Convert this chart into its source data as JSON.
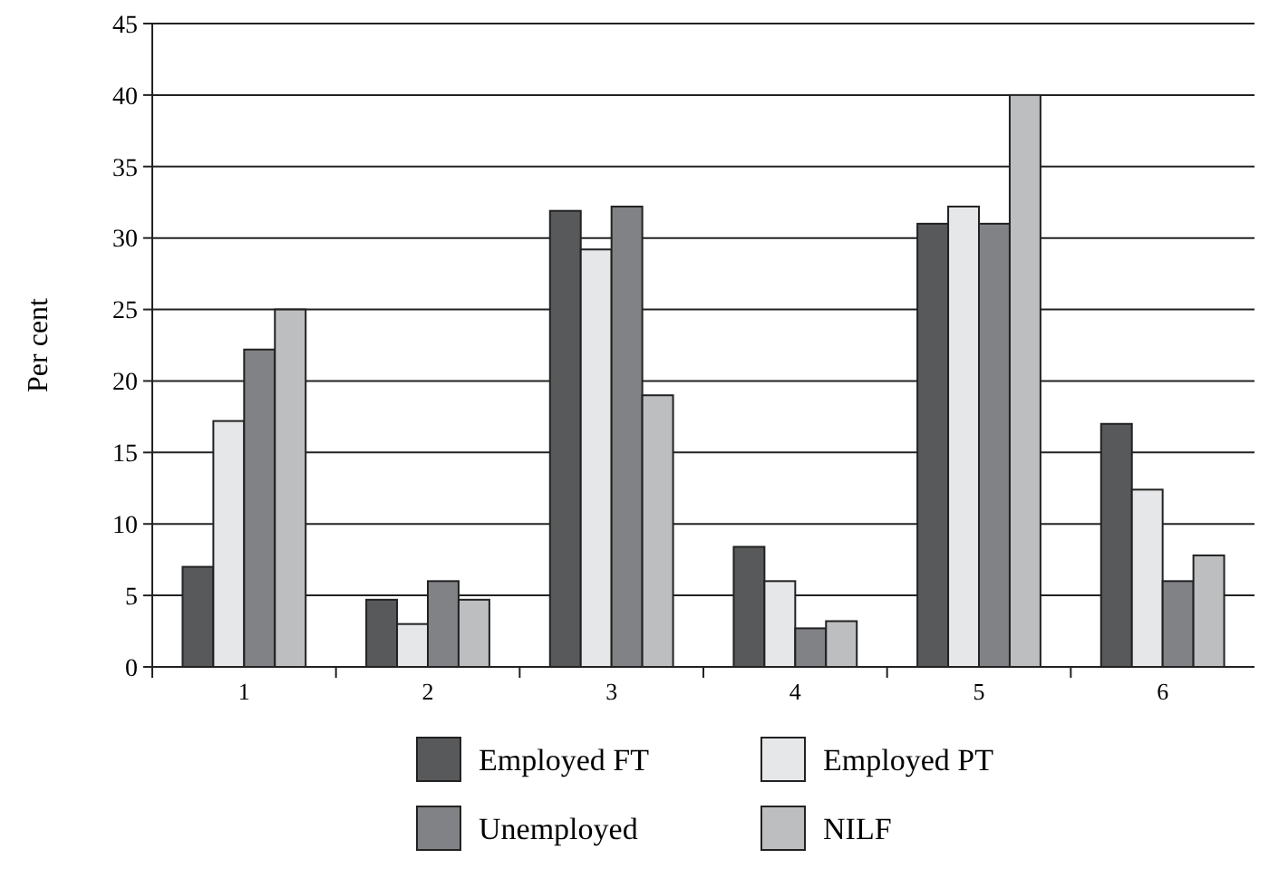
{
  "chart_data": {
    "type": "bar",
    "ylabel": "Per cent",
    "categories": [
      "1",
      "2",
      "3",
      "4",
      "5",
      "6"
    ],
    "series": [
      {
        "name": "Employed FT",
        "color": "#58595b",
        "values": [
          7,
          4.7,
          31.9,
          8.4,
          31,
          17
        ]
      },
      {
        "name": "Employed PT",
        "color": "#e6e7e8",
        "values": [
          17.2,
          3,
          29.2,
          6,
          32.2,
          12.4
        ]
      },
      {
        "name": "Unemployed",
        "color": "#808285",
        "values": [
          22.2,
          6,
          32.2,
          2.7,
          31,
          6
        ]
      },
      {
        "name": "NILF",
        "color": "#bcbec0",
        "values": [
          25,
          4.7,
          19,
          3.2,
          40,
          7.8
        ]
      }
    ],
    "ylim": [
      0,
      45
    ],
    "yticks": [
      0,
      5,
      10,
      15,
      20,
      25,
      30,
      35,
      40,
      45
    ],
    "grid": "y",
    "legend": "bottom"
  }
}
